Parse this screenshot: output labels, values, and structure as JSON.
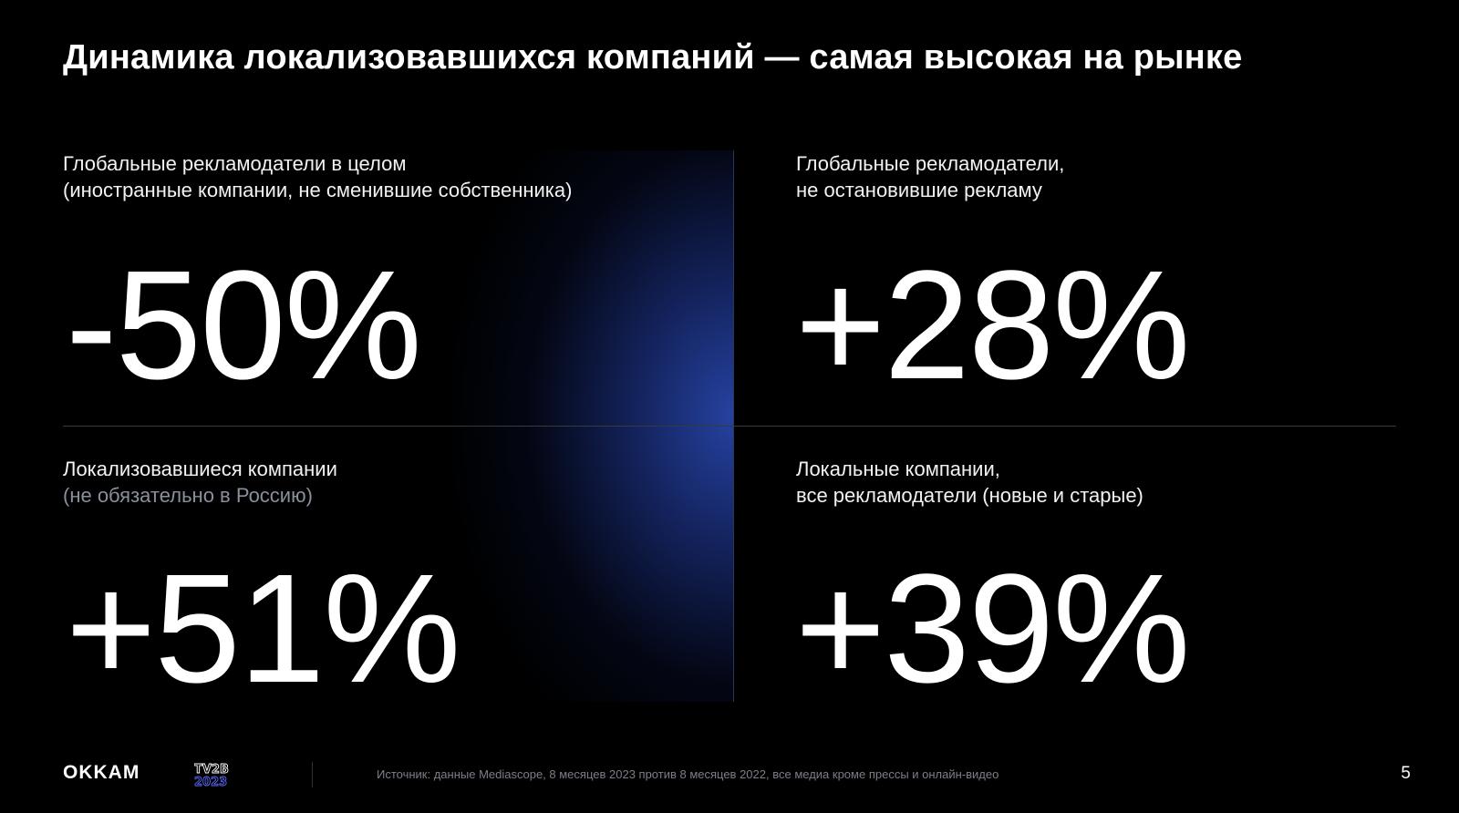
{
  "title": "Динамика локализовавшихся компаний — самая высокая на рынке",
  "quadrants": [
    {
      "label_line1": "Глобальные рекламодатели  в целом",
      "label_line2": "(иностранные компании, не сменившие собственника)",
      "value": "-50%"
    },
    {
      "label_line1": "Глобальные рекламодатели,",
      "label_line2": "не остановившие рекламу",
      "value": "+28%"
    },
    {
      "label_line1": "Локализовавшиеся компании",
      "label_line2": "(не обязательно в Россию)",
      "value": "+51%"
    },
    {
      "label_line1": "Локальные компании,",
      "label_line2": "все рекламодатели (новые и старые)",
      "value": "+39%"
    }
  ],
  "footer": {
    "logo": "OKKAM",
    "event_line1": "TV2B",
    "event_line2": "2023",
    "source": "Источник: данные Mediascope, 8 месяцев 2023 против 8 месяцев 2022, все медиа кроме прессы и онлайн-видео",
    "page_number": "5"
  },
  "colors": {
    "background": "#000000",
    "glow": "#2846aa",
    "text": "#ffffff",
    "muted": "#8a8f9c"
  }
}
